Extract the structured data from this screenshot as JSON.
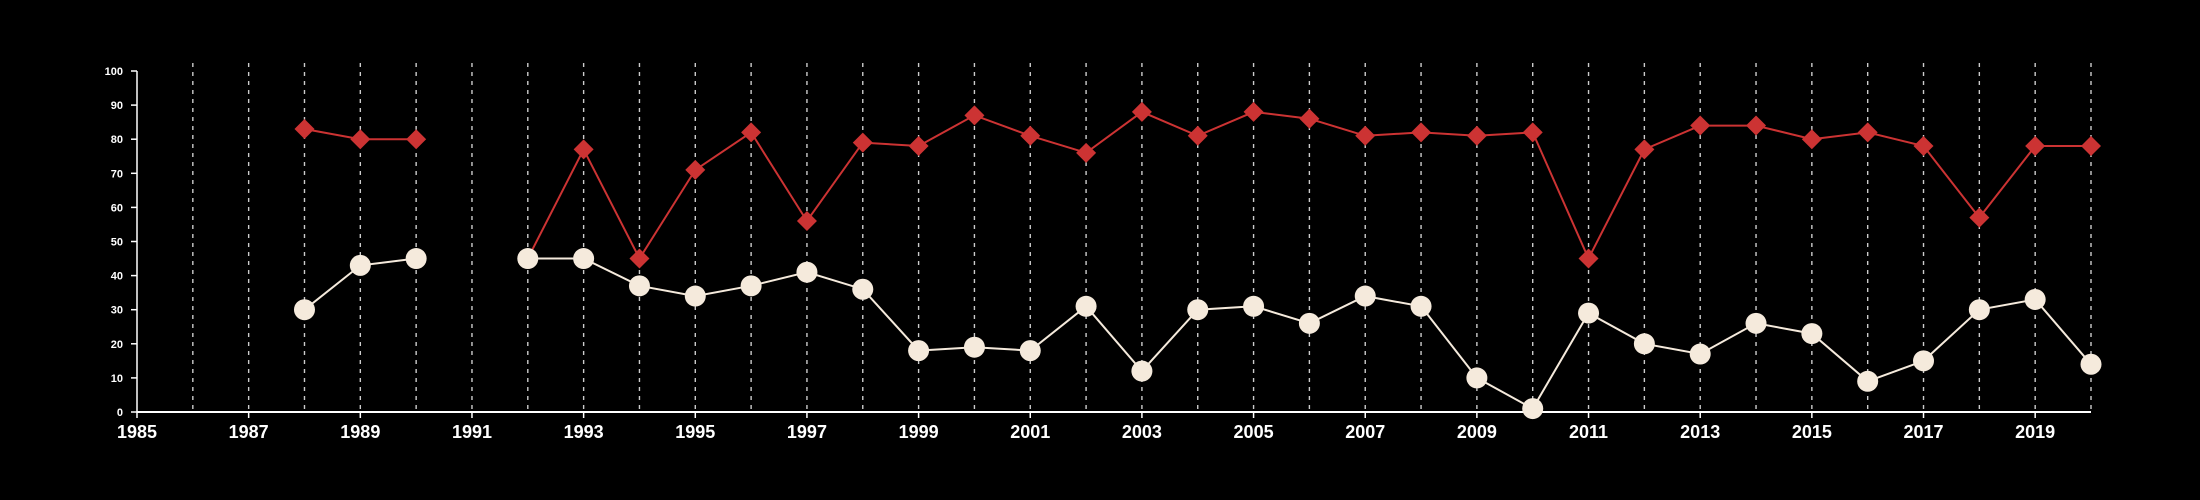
{
  "chart_data": {
    "type": "line",
    "title": "",
    "xlabel": "",
    "ylabel": "",
    "xlim": [
      1985,
      2020
    ],
    "ylim": [
      0,
      100
    ],
    "x_ticks": [
      1985,
      1987,
      1989,
      1991,
      1993,
      1995,
      1997,
      1999,
      2001,
      2003,
      2005,
      2007,
      2009,
      2011,
      2013,
      2015,
      2017,
      2019
    ],
    "y_ticks": [
      0,
      10,
      20,
      30,
      40,
      50,
      60,
      70,
      80,
      90,
      100
    ],
    "grid": "vertical dashed lines at every year",
    "legend": "none",
    "series": [
      {
        "color": "#cc3333",
        "marker": "diamond",
        "points": [
          [
            1988,
            83
          ],
          [
            1989,
            80
          ],
          [
            1990,
            80
          ],
          null,
          [
            1992,
            45
          ],
          [
            1993,
            77
          ],
          [
            1994,
            45
          ],
          [
            1995,
            71
          ],
          [
            1996,
            82
          ],
          [
            1997,
            56
          ],
          [
            1998,
            79
          ],
          [
            1999,
            78
          ],
          [
            2000,
            87
          ],
          [
            2001,
            81
          ],
          [
            2002,
            76
          ],
          [
            2003,
            88
          ],
          [
            2004,
            81
          ],
          [
            2005,
            88
          ],
          [
            2006,
            86
          ],
          [
            2007,
            81
          ],
          [
            2008,
            82
          ],
          [
            2009,
            81
          ],
          [
            2010,
            82
          ],
          [
            2011,
            45
          ],
          [
            2012,
            77
          ],
          [
            2013,
            84
          ],
          [
            2014,
            84
          ],
          [
            2015,
            80
          ],
          [
            2016,
            82
          ],
          [
            2017,
            78
          ],
          [
            2018,
            57
          ],
          [
            2019,
            78
          ],
          [
            2020,
            78
          ]
        ]
      },
      {
        "color": "#f5eadc",
        "marker": "circle",
        "points": [
          [
            1988,
            30
          ],
          [
            1989,
            43
          ],
          [
            1990,
            45
          ],
          null,
          [
            1992,
            45
          ],
          [
            1993,
            45
          ],
          [
            1994,
            37
          ],
          [
            1995,
            34
          ],
          [
            1996,
            37
          ],
          [
            1997,
            41
          ],
          [
            1998,
            36
          ],
          [
            1999,
            18
          ],
          [
            2000,
            19
          ],
          [
            2001,
            18
          ],
          [
            2002,
            31
          ],
          [
            2003,
            12
          ],
          [
            2004,
            30
          ],
          [
            2005,
            31
          ],
          [
            2006,
            26
          ],
          [
            2007,
            34
          ],
          [
            2008,
            31
          ],
          [
            2009,
            10
          ],
          [
            2010,
            1
          ],
          [
            2011,
            29
          ],
          [
            2012,
            20
          ],
          [
            2013,
            17
          ],
          [
            2014,
            26
          ],
          [
            2015,
            23
          ],
          [
            2016,
            9
          ],
          [
            2017,
            15
          ],
          [
            2018,
            30
          ],
          [
            2019,
            33
          ],
          [
            2020,
            14
          ]
        ]
      }
    ]
  }
}
